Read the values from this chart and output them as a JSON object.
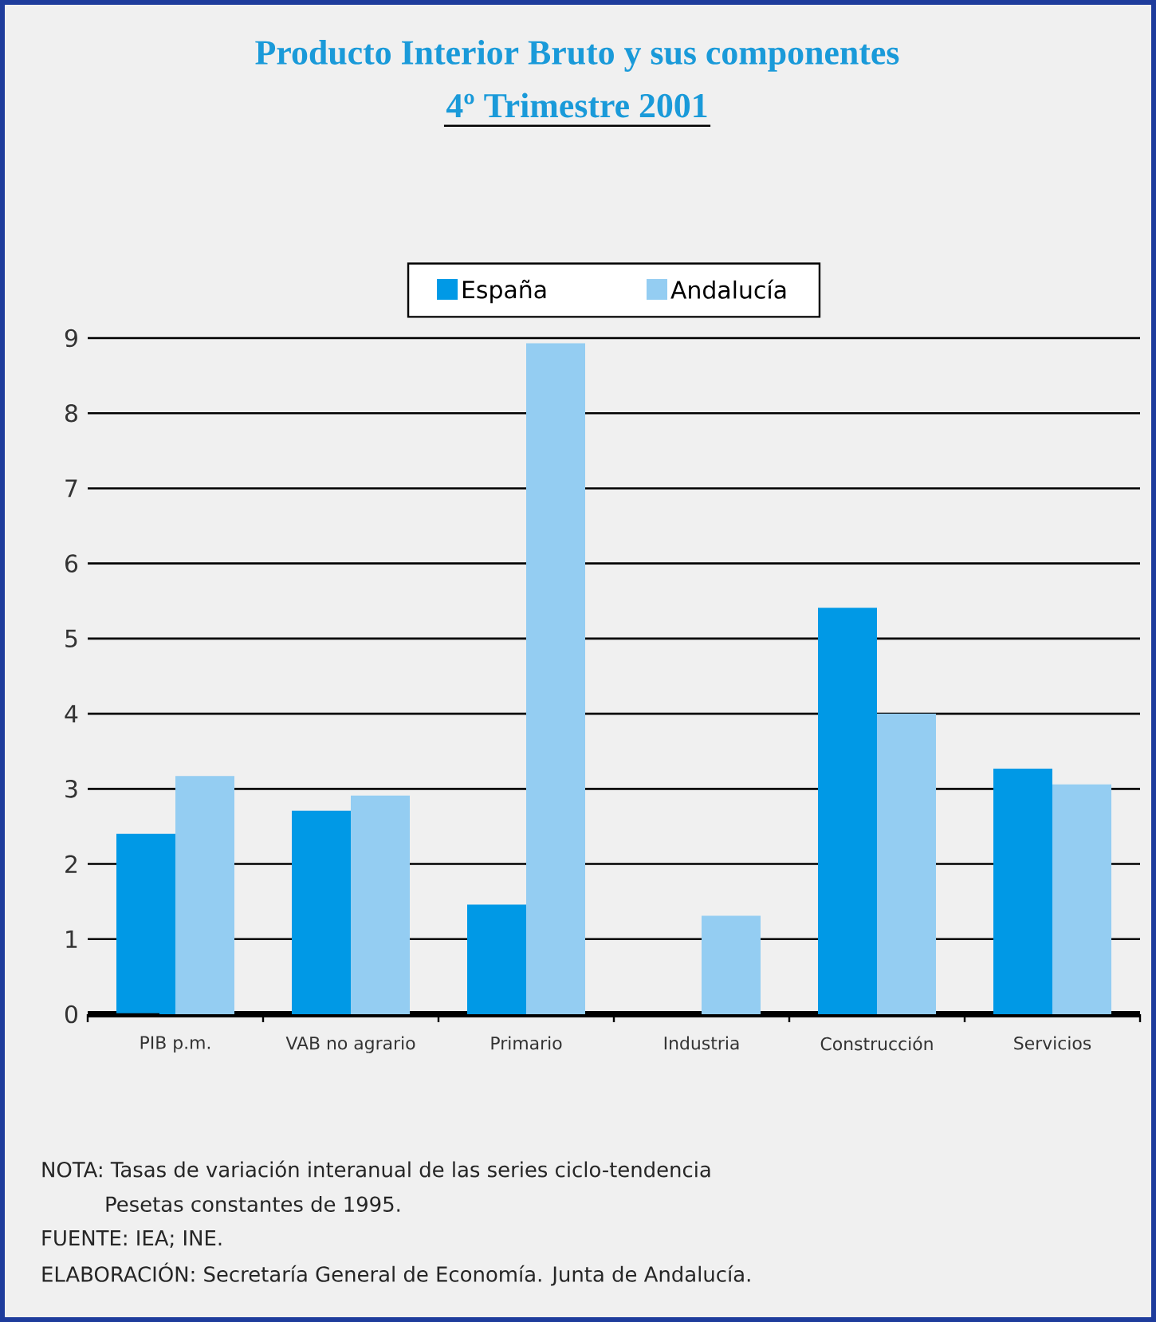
{
  "chart_data": {
    "type": "bar",
    "title": "Producto Interior Bruto y sus componentes",
    "subtitle": "4º Trimestre 2001",
    "categories": [
      "PIB p.m.",
      "VAB no agrario",
      "Primario",
      "Industria",
      "Construcción",
      "Servicios"
    ],
    "series": [
      {
        "name": "España",
        "color": "#0099e6",
        "values": [
          2.4,
          2.71,
          1.46,
          null,
          5.41,
          3.27
        ]
      },
      {
        "name": "Andalucía",
        "color": "#94cdf2",
        "values": [
          3.17,
          2.91,
          8.93,
          1.31,
          4.0,
          3.06
        ]
      }
    ],
    "ylim": [
      0,
      9
    ],
    "yticks": [
      0,
      1,
      2,
      3,
      4,
      5,
      6,
      7,
      8,
      9
    ],
    "grid": "y",
    "legend": "top",
    "annotations": [
      "NOTA: Tasas de variación interanual de las series ciclo-tendencia",
      "Pesetas constantes de 1995.",
      "FUENTE: IEA; INE.",
      "ELABORACIÓN: Secretaría General de Economía. Junta de Andalucía."
    ]
  }
}
